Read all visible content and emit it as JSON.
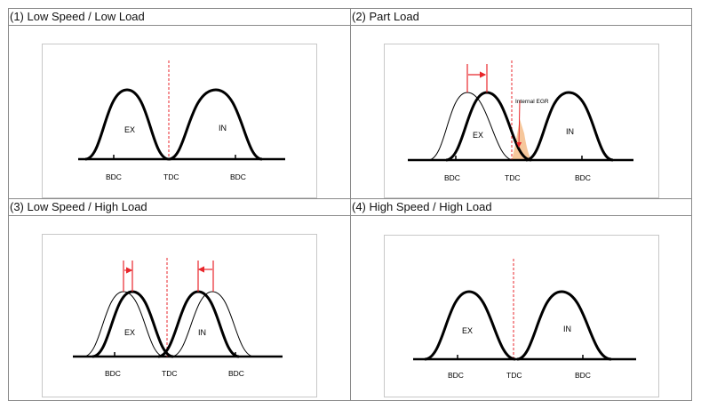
{
  "panels": [
    {
      "title": "(1) Low Speed / Low Load",
      "bdc_left": "BDC",
      "tdc": "TDC",
      "bdc_right": "BDC",
      "ex_label": "EX",
      "in_label": "IN"
    },
    {
      "title": "(2) Part Load",
      "bdc_left": "BDC",
      "tdc": "TDC",
      "bdc_right": "BDC",
      "ex_label": "EX",
      "in_label": "IN",
      "annotation": "Internal EGR"
    },
    {
      "title": "(3) Low Speed / High Load",
      "bdc_left": "BDC",
      "tdc": "TDC",
      "bdc_right": "BDC",
      "ex_label": "EX",
      "in_label": "IN"
    },
    {
      "title": "(4) High Speed / High Load",
      "bdc_left": "BDC",
      "tdc": "TDC",
      "bdc_right": "BDC",
      "ex_label": "EX",
      "in_label": "IN"
    }
  ],
  "colors": {
    "curve": "#000000",
    "tdc_line": "#e8262b",
    "shift_arrow": "#e8262b",
    "overlap_fill": "#f6c79b",
    "border": "#8a8a8a"
  }
}
